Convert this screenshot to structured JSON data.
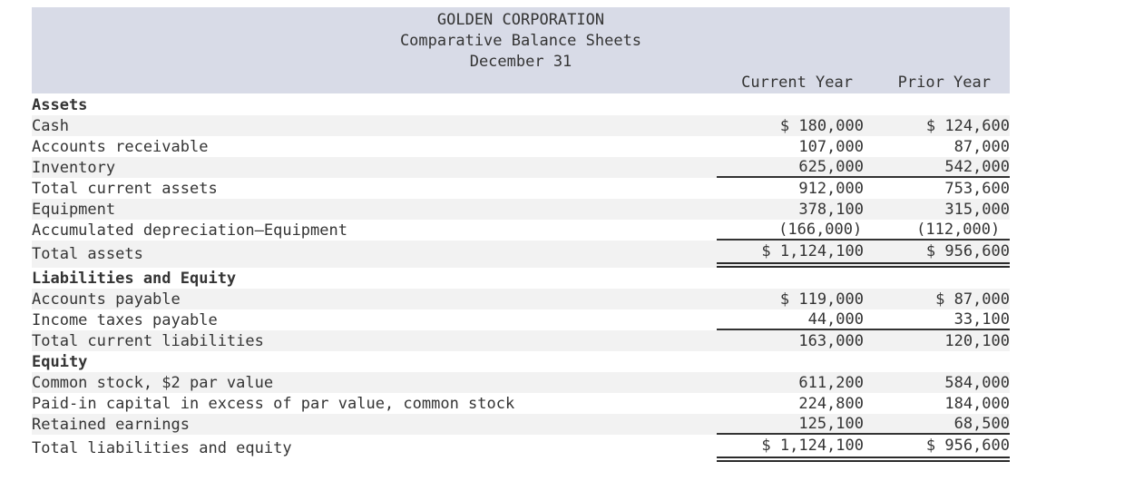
{
  "header": {
    "company": "GOLDEN CORPORATION",
    "subtitle": "Comparative Balance Sheets",
    "date_line": "December 31",
    "col_current": "Current Year",
    "col_prior": "Prior Year"
  },
  "colors": {
    "band_background": "#d8dbe7",
    "row_stripe": "#f2f2f2",
    "text": "#343434",
    "rule": "#333333"
  },
  "table": {
    "rows": [
      {
        "label": "Assets",
        "current": "",
        "prior": "",
        "section": true
      },
      {
        "label": "Cash",
        "current": "$ 180,000",
        "prior": "$ 124,600",
        "stripe": true
      },
      {
        "label": "Accounts receivable",
        "current": "107,000",
        "prior": "87,000"
      },
      {
        "label": "Inventory",
        "current": "625,000",
        "prior": "542,000",
        "stripe": true,
        "rule": "single"
      },
      {
        "label": "Total current assets",
        "current": "912,000",
        "prior": "753,600"
      },
      {
        "label": "Equipment",
        "current": "378,100",
        "prior": "315,000",
        "stripe": true
      },
      {
        "label": "Accumulated depreciation—Equipment",
        "current": "(166,000)",
        "prior": "(112,000)",
        "rule": "single",
        "paren": true
      },
      {
        "label": "Total assets",
        "current": "$ 1,124,100",
        "prior": "$ 956,600",
        "stripe": true,
        "rule": "double",
        "tall": true
      },
      {
        "label": "Liabilities and Equity",
        "current": "",
        "prior": "",
        "section": true
      },
      {
        "label": "Accounts payable",
        "current": "$ 119,000",
        "prior": "$ 87,000",
        "stripe": true
      },
      {
        "label": "Income taxes payable",
        "current": "44,000",
        "prior": "33,100",
        "rule": "single"
      },
      {
        "label": "Total current liabilities",
        "current": "163,000",
        "prior": "120,100",
        "stripe": true
      },
      {
        "label": "Equity",
        "current": "",
        "prior": "",
        "section": true
      },
      {
        "label": "Common stock, $2 par value",
        "current": "611,200",
        "prior": "584,000",
        "stripe": true
      },
      {
        "label": "Paid-in capital in excess of par value, common stock",
        "current": "224,800",
        "prior": "184,000"
      },
      {
        "label": "Retained earnings",
        "current": "125,100",
        "prior": "68,500",
        "stripe": true,
        "rule": "single"
      },
      {
        "label": "Total liabilities and equity",
        "current": "$ 1,124,100",
        "prior": "$ 956,600",
        "rule": "double",
        "tall": true
      }
    ]
  }
}
